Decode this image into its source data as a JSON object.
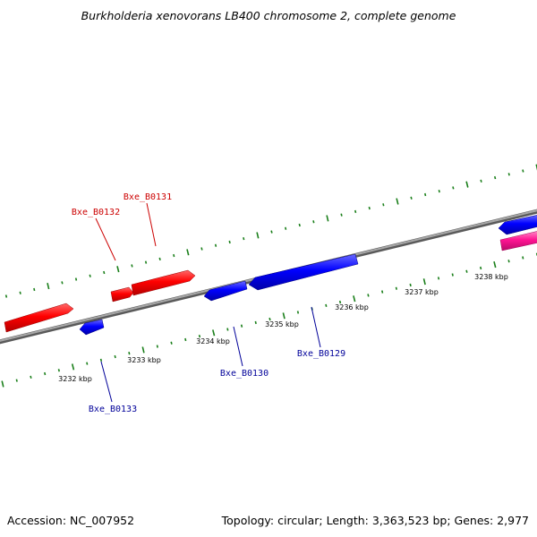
{
  "title": "Burkholderia xenovorans LB400 chromosome 2, complete genome",
  "footer": {
    "accession": "Accession: NC_007952",
    "summary": "Topology: circular; Length: 3,363,523 bp; Genes: 2,977"
  },
  "colors": {
    "forward_gene": "#ff0000",
    "reverse_gene": "#0000ff",
    "highlight_gene": "#ff1493",
    "tick": "#1a7f1a",
    "backbone": "#8a8a8a",
    "forward_label": "#cc0000",
    "reverse_label": "#000099"
  },
  "scale_labels": [
    "3232 kbp",
    "3233 kbp",
    "3234 kbp",
    "3235 kbp",
    "3236 kbp",
    "3237 kbp",
    "3238 kbp"
  ],
  "gene_labels": {
    "bxe_b0131": "Bxe_B0131",
    "bxe_b0132": "Bxe_B0132",
    "bxe_b0130": "Bxe_B0130",
    "bxe_b0129": "Bxe_B0129",
    "bxe_b0133": "Bxe_B0133"
  }
}
